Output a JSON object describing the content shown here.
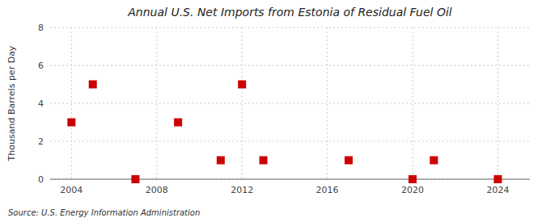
{
  "chart_data": {
    "type": "scatter",
    "title": "Annual U.S. Net Imports from Estonia of Residual Fuel Oil",
    "ylabel": "Thousand Barrels per Day",
    "annotations": [
      "Source: U.S. Energy Information Administration"
    ],
    "x": [
      2004,
      2005,
      2007,
      2009,
      2011,
      2012,
      2013,
      2017,
      2020,
      2021,
      2024
    ],
    "values": [
      3,
      5,
      0,
      3,
      1,
      5,
      1,
      1,
      0,
      1,
      0
    ],
    "color": "#cc0000",
    "marker": "square",
    "xlim": [
      2003,
      2025.5
    ],
    "ylim": [
      0,
      8
    ],
    "xticks": [
      2004,
      2008,
      2012,
      2016,
      2020,
      2024
    ],
    "yticks": [
      0,
      2,
      4,
      6,
      8
    ],
    "grid": true
  }
}
